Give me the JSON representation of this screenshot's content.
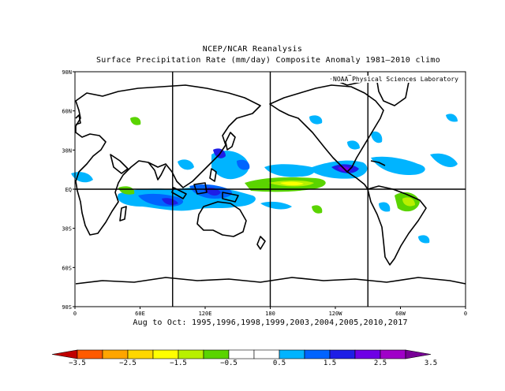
{
  "title": "NCEP/NCAR Reanalysis",
  "subtitle": "Surface Precipitation Rate (mm/day) Composite Anomaly 1981–2010 climo",
  "credit": "NOAA Physical Sciences Laboratory",
  "period_label": "Aug to Oct: 1995,1996,1998,1999,2003,2004,2005,2010,2017",
  "lat_ticks": [
    {
      "lat": 90,
      "label": "90N"
    },
    {
      "lat": 60,
      "label": "60N"
    },
    {
      "lat": 30,
      "label": "30N"
    },
    {
      "lat": 0,
      "label": "EQ"
    },
    {
      "lat": -30,
      "label": "30S"
    },
    {
      "lat": -60,
      "label": "60S"
    },
    {
      "lat": -90,
      "label": "90S"
    }
  ],
  "lon_ticks": [
    {
      "lon": 0,
      "label": "0"
    },
    {
      "lon": 60,
      "label": "60E"
    },
    {
      "lon": 120,
      "label": "120E"
    },
    {
      "lon": 180,
      "label": "180"
    },
    {
      "lon": 240,
      "label": "120W"
    },
    {
      "lon": 300,
      "label": "60W"
    },
    {
      "lon": 360,
      "label": "0"
    }
  ],
  "grid_lons": [
    90,
    180,
    270
  ],
  "colorbar": {
    "colors": [
      "#c00000",
      "#ff5a00",
      "#ffa500",
      "#ffd700",
      "#ffff00",
      "#b8f000",
      "#5ad400",
      "#ffffff",
      "#ffffff",
      "#00b4ff",
      "#0064ff",
      "#1e1ee6",
      "#6e00e6",
      "#a000c8",
      "#780096"
    ],
    "labels": [
      "−3.5",
      "−2.5",
      "−1.5",
      "−0.5",
      "0.5",
      "1.5",
      "2.5",
      "3.5"
    ]
  },
  "anomaly_colors": {
    "cyan": "#00b4ff",
    "blue": "#0064ff",
    "indigo": "#1e1ee6",
    "purple": "#6e00e6",
    "green": "#5ad400",
    "lime": "#b8f000",
    "yellow": "#ffff00"
  }
}
